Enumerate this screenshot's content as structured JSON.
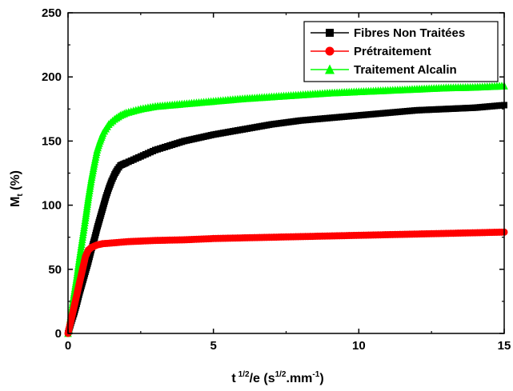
{
  "chart_data": {
    "type": "scatter",
    "title": "",
    "xlabel_parts": {
      "base": "t",
      "sup1": "1/2",
      "mid": "/e (s",
      "sup2": "1/2",
      "mid2": ".mm",
      "sup3": "-1",
      "end": ")"
    },
    "ylabel_parts": {
      "base": "M",
      "sub": "t",
      "end": " (%)"
    },
    "xlim": [
      0,
      15
    ],
    "ylim": [
      0,
      250
    ],
    "xticks": [
      "0",
      "5",
      "10",
      "15"
    ],
    "yticks": [
      "0",
      "50",
      "100",
      "150",
      "200",
      "250"
    ],
    "grid": false,
    "legend_position": "top-right",
    "series": [
      {
        "name": "Fibres Non Traitées",
        "color": "#000000",
        "marker": "square",
        "x": [
          0,
          0.1,
          0.2,
          0.3,
          0.4,
          0.5,
          0.6,
          0.7,
          0.8,
          0.9,
          1.0,
          1.1,
          1.2,
          1.3,
          1.4,
          1.5,
          1.6,
          1.7,
          1.8,
          1.9,
          2.0,
          2.5,
          3,
          4,
          5,
          6,
          7,
          8,
          9,
          10,
          11,
          12,
          13,
          14,
          15
        ],
        "y": [
          0,
          8,
          15,
          23,
          32,
          40,
          48,
          56,
          65,
          73,
          82,
          90,
          98,
          106,
          113,
          119,
          124,
          128,
          131,
          132,
          133,
          138,
          143,
          150,
          155,
          159,
          163,
          166,
          168,
          170,
          172,
          174,
          175,
          176,
          178
        ]
      },
      {
        "name": "Prétraitement",
        "color": "#ff0000",
        "marker": "circle",
        "x": [
          0,
          0.1,
          0.2,
          0.3,
          0.4,
          0.5,
          0.6,
          0.7,
          0.8,
          0.9,
          1.0,
          1.2,
          1.5,
          2,
          3,
          4,
          5,
          6,
          7,
          8,
          9,
          10,
          11,
          12,
          13,
          14,
          15
        ],
        "y": [
          0,
          10,
          20,
          30,
          40,
          50,
          60,
          65,
          67,
          68,
          69,
          70,
          70.5,
          71.5,
          72.5,
          73,
          74,
          74.5,
          75,
          75.5,
          76,
          76.5,
          77,
          77.5,
          78,
          78.5,
          79
        ]
      },
      {
        "name": "Traitement Alcalin",
        "color": "#00ff00",
        "marker": "triangle",
        "x": [
          0,
          0.1,
          0.2,
          0.3,
          0.4,
          0.5,
          0.6,
          0.7,
          0.8,
          0.9,
          1.0,
          1.1,
          1.2,
          1.4,
          1.6,
          1.8,
          2.0,
          2.5,
          3,
          4,
          5,
          6,
          7,
          8,
          9,
          10,
          11,
          12,
          13,
          14,
          15
        ],
        "y": [
          0,
          15,
          30,
          44,
          60,
          75,
          90,
          106,
          120,
          132,
          143,
          150,
          156,
          163,
          167,
          170,
          172,
          175,
          177,
          179,
          181,
          183,
          184.5,
          186,
          187.5,
          188.5,
          189.5,
          190.5,
          191.5,
          192,
          193
        ]
      }
    ]
  }
}
